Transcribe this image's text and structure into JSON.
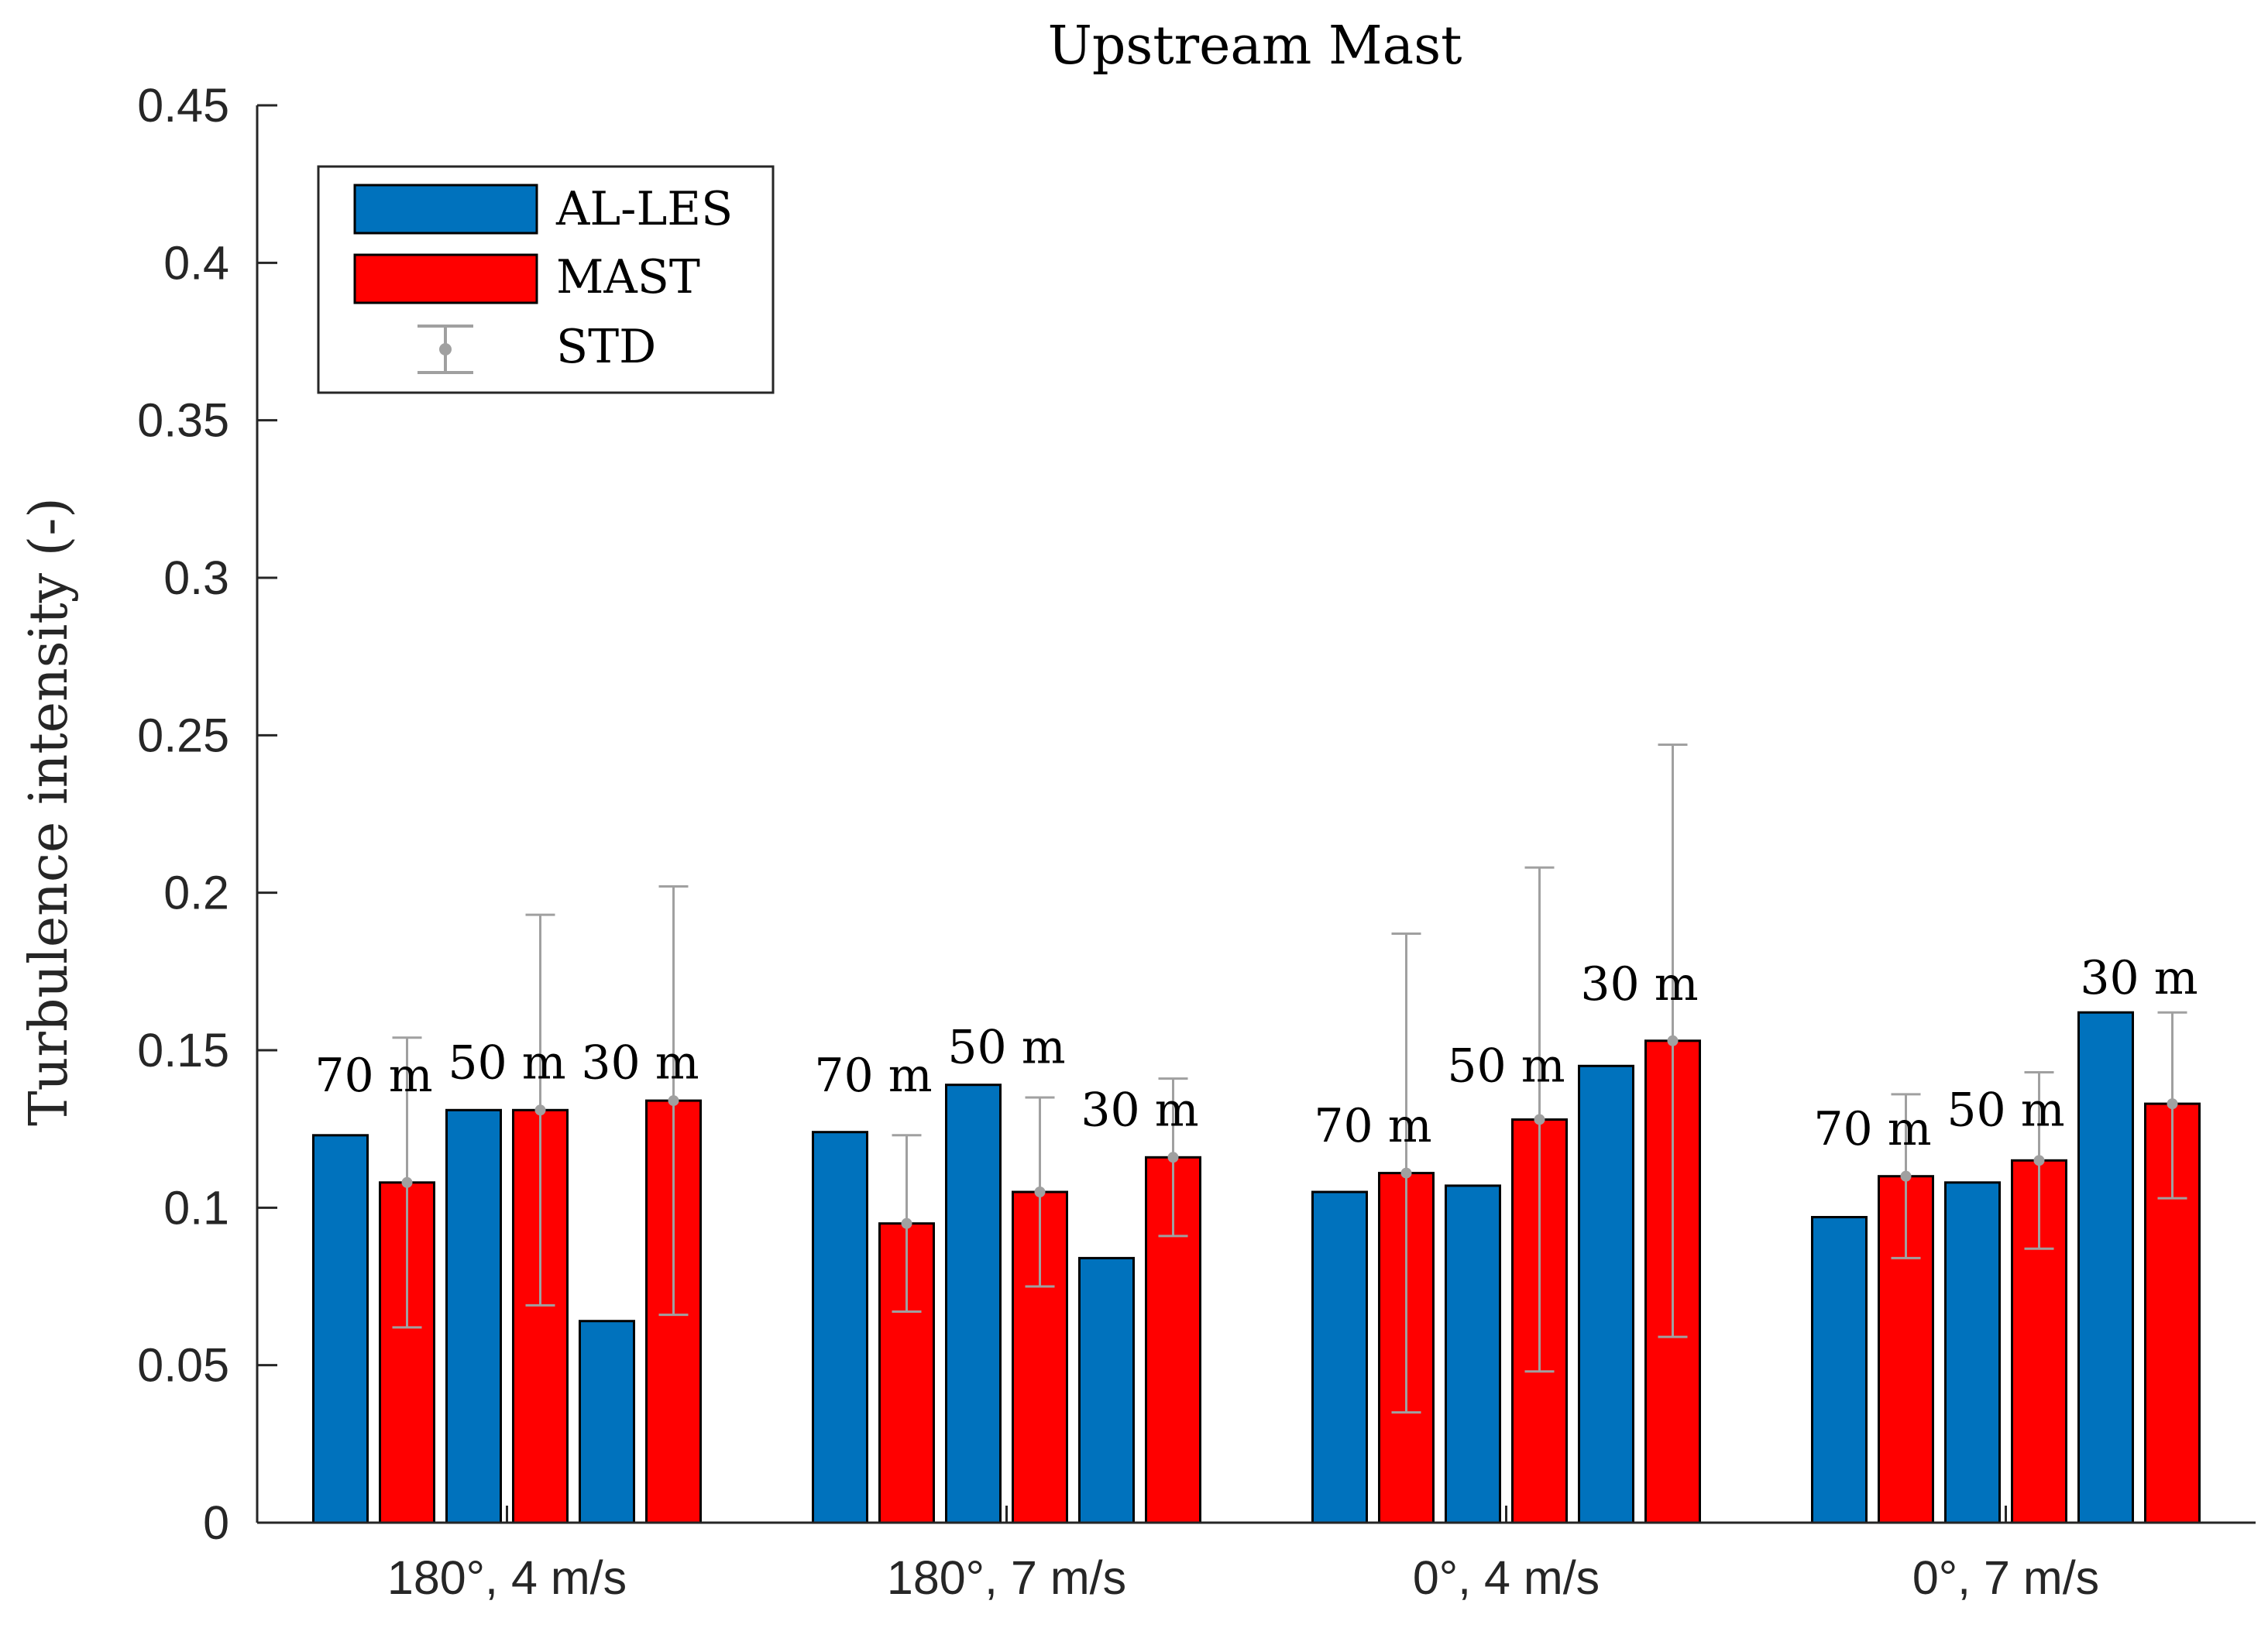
{
  "chart_data": {
    "type": "bar",
    "title": "Upstream Mast",
    "xlabel": "",
    "ylabel": "Turbulence intensity (-)",
    "ylim": [
      0,
      0.45
    ],
    "yticks": [
      0,
      0.05,
      0.1,
      0.15,
      0.2,
      0.25,
      0.3,
      0.35,
      0.4,
      0.45
    ],
    "ytick_labels": [
      "0",
      "0.05",
      "0.1",
      "0.15",
      "0.2",
      "0.25",
      "0.3",
      "0.35",
      "0.4",
      "0.45"
    ],
    "grid": false,
    "legend_position": "top-left",
    "categories": [
      "180°, 4 m/s",
      "180°, 7 m/s",
      "0°, 4 m/s",
      "0°, 7 m/s"
    ],
    "heights": [
      "70 m",
      "50 m",
      "30 m"
    ],
    "series": [
      {
        "name": "AL-LES",
        "color": "#0072BD",
        "values": [
          [
            0.123,
            0.131,
            0.064
          ],
          [
            0.124,
            0.139,
            0.084
          ],
          [
            0.105,
            0.107,
            0.145
          ],
          [
            0.097,
            0.108,
            0.162
          ]
        ]
      },
      {
        "name": "MAST",
        "color": "#FF0000",
        "values": [
          [
            0.108,
            0.131,
            0.134
          ],
          [
            0.095,
            0.105,
            0.116
          ],
          [
            0.111,
            0.128,
            0.153
          ],
          [
            0.11,
            0.115,
            0.133
          ]
        ]
      }
    ],
    "error_bars": {
      "name": "STD",
      "color": "#A0A0A0",
      "applies_to": "MAST",
      "lower": [
        [
          0.062,
          0.069,
          0.066
        ],
        [
          0.067,
          0.075,
          0.091
        ],
        [
          0.035,
          0.048,
          0.059
        ],
        [
          0.084,
          0.087,
          0.103
        ]
      ],
      "upper": [
        [
          0.154,
          0.193,
          0.202
        ],
        [
          0.123,
          0.135,
          0.141
        ],
        [
          0.187,
          0.208,
          0.247
        ],
        [
          0.136,
          0.143,
          0.162
        ]
      ]
    },
    "annotations": [
      {
        "text": "70 m",
        "group": 0,
        "height_index": 0,
        "value": 0.137
      },
      {
        "text": "50 m",
        "group": 0,
        "height_index": 1,
        "value": 0.141
      },
      {
        "text": "30 m",
        "group": 0,
        "height_index": 2,
        "value": 0.141
      },
      {
        "text": "70 m",
        "group": 1,
        "height_index": 0,
        "value": 0.137
      },
      {
        "text": "50 m",
        "group": 1,
        "height_index": 1,
        "value": 0.146
      },
      {
        "text": "30 m",
        "group": 1,
        "height_index": 2,
        "value": 0.126
      },
      {
        "text": "70 m",
        "group": 2,
        "height_index": 0,
        "value": 0.121
      },
      {
        "text": "50 m",
        "group": 2,
        "height_index": 1,
        "value": 0.14
      },
      {
        "text": "30 m",
        "group": 2,
        "height_index": 2,
        "value": 0.166
      },
      {
        "text": "70 m",
        "group": 3,
        "height_index": 0,
        "value": 0.12
      },
      {
        "text": "50 m",
        "group": 3,
        "height_index": 1,
        "value": 0.126
      },
      {
        "text": "30 m",
        "group": 3,
        "height_index": 2,
        "value": 0.168
      }
    ]
  }
}
